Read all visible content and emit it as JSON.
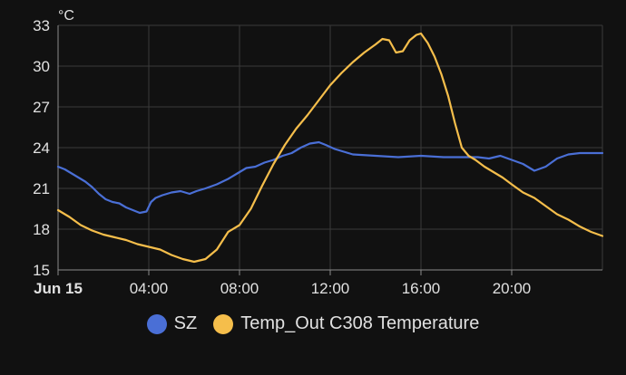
{
  "chart_data": {
    "type": "line",
    "title": "",
    "unit_label": "°C",
    "ylim": [
      15,
      33
    ],
    "yticks": [
      "15",
      "18",
      "21",
      "24",
      "27",
      "30",
      "33"
    ],
    "xlim": [
      0,
      24
    ],
    "xticks": [
      {
        "value": 0,
        "label": "Jun 15",
        "bold": true
      },
      {
        "value": 4,
        "label": "04:00"
      },
      {
        "value": 8,
        "label": "08:00"
      },
      {
        "value": 12,
        "label": "12:00"
      },
      {
        "value": 16,
        "label": "16:00"
      },
      {
        "value": 20,
        "label": "20:00"
      }
    ],
    "grid": true,
    "legend_position": "bottom",
    "series": [
      {
        "name": "SZ",
        "color": "#4a6fd6",
        "x": [
          0,
          0.3,
          0.6,
          0.9,
          1.2,
          1.5,
          1.8,
          2.1,
          2.4,
          2.7,
          3.0,
          3.3,
          3.6,
          3.9,
          4.1,
          4.3,
          4.6,
          5.0,
          5.4,
          5.8,
          6.1,
          6.5,
          7.0,
          7.5,
          7.9,
          8.3,
          8.7,
          9.1,
          9.5,
          9.9,
          10.3,
          10.7,
          11.1,
          11.5,
          11.8,
          12.2,
          12.6,
          13.0,
          14,
          15,
          16,
          17,
          18,
          18.5,
          19,
          19.5,
          20,
          20.5,
          21,
          21.5,
          22,
          22.5,
          23,
          24
        ],
        "y": [
          22.6,
          22.4,
          22.1,
          21.8,
          21.5,
          21.1,
          20.6,
          20.2,
          20.0,
          19.9,
          19.6,
          19.4,
          19.2,
          19.3,
          20.0,
          20.3,
          20.5,
          20.7,
          20.8,
          20.6,
          20.8,
          21.0,
          21.3,
          21.7,
          22.1,
          22.5,
          22.6,
          22.9,
          23.1,
          23.4,
          23.6,
          24.0,
          24.3,
          24.4,
          24.2,
          23.9,
          23.7,
          23.5,
          23.4,
          23.3,
          23.4,
          23.3,
          23.3,
          23.3,
          23.2,
          23.4,
          23.1,
          22.8,
          22.3,
          22.6,
          23.2,
          23.5,
          23.6,
          23.6
        ]
      },
      {
        "name": "Temp_Out C308 Temperature",
        "color": "#f5be4b",
        "x": [
          0,
          0.5,
          1.0,
          1.5,
          2.0,
          2.5,
          3.0,
          3.5,
          4.0,
          4.5,
          5.0,
          5.5,
          6.0,
          6.5,
          7.0,
          7.5,
          8.0,
          8.5,
          9.0,
          9.5,
          10.0,
          10.5,
          11.0,
          11.5,
          12.0,
          12.5,
          13.0,
          13.5,
          14.0,
          14.3,
          14.6,
          14.9,
          15.2,
          15.5,
          15.8,
          16.0,
          16.3,
          16.6,
          16.9,
          17.2,
          17.5,
          17.8,
          18.1,
          18.4,
          18.8,
          19.2,
          19.6,
          20.0,
          20.5,
          21.0,
          21.5,
          22.0,
          22.5,
          23.0,
          23.5,
          24
        ],
        "y": [
          19.4,
          18.9,
          18.3,
          17.9,
          17.6,
          17.4,
          17.2,
          16.9,
          16.7,
          16.5,
          16.1,
          15.8,
          15.6,
          15.8,
          16.5,
          17.8,
          18.3,
          19.5,
          21.2,
          22.8,
          24.2,
          25.4,
          26.4,
          27.5,
          28.6,
          29.5,
          30.3,
          31.0,
          31.6,
          32.0,
          31.9,
          31.0,
          31.1,
          31.9,
          32.3,
          32.4,
          31.7,
          30.7,
          29.4,
          27.8,
          25.8,
          24.0,
          23.4,
          23.1,
          22.6,
          22.2,
          21.8,
          21.3,
          20.7,
          20.3,
          19.7,
          19.1,
          18.7,
          18.2,
          17.8,
          17.5
        ]
      }
    ]
  }
}
